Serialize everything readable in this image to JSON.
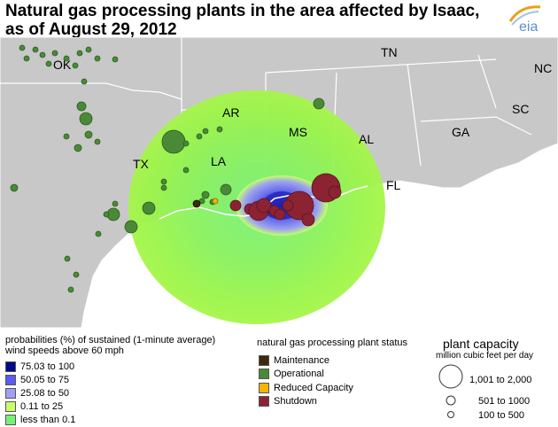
{
  "title": {
    "line1": "Natural gas processing plants in the area affected by Isaac,",
    "line2": "as of August 29, 2012"
  },
  "logo": {
    "text": "eia",
    "color": "#5b8fc9",
    "accent": "#e8a21a"
  },
  "map": {
    "land_color": "#c8c8c8",
    "water_color": "#ffffff",
    "border_color": "#ffffff",
    "state_labels": [
      "OK",
      "TN",
      "NC",
      "AR",
      "SC",
      "MS",
      "AL",
      "GA",
      "TX",
      "LA",
      "FL"
    ]
  },
  "wind_legend": {
    "title_line1": "probabilities (%) of sustained (1-minute average)",
    "title_line2": "wind speeds above 60 mph",
    "items": [
      {
        "label": "75.03 to  100",
        "color": "#000a8c"
      },
      {
        "label": "50.05 to    75",
        "color": "#5b5bf0"
      },
      {
        "label": "25.08 to    50",
        "color": "#9f9ff5"
      },
      {
        "label": "0.11 to    25",
        "color": "#c8ff6c"
      },
      {
        "label": "less than 0.1",
        "color": "#78f078"
      }
    ]
  },
  "status_legend": {
    "title": "natural gas processing plant status",
    "items": [
      {
        "label": "Maintenance",
        "color": "#3d2a0a"
      },
      {
        "label": "Operational",
        "color": "#4a8a36"
      },
      {
        "label": "Reduced Capacity",
        "color": "#f5b400"
      },
      {
        "label": "Shutdown",
        "color": "#8b2332"
      }
    ]
  },
  "capacity_legend": {
    "title": "plant capacity",
    "subtitle": "million cubic feet per day",
    "items": [
      {
        "label": "1,001 to  2,000"
      },
      {
        "label": "501 to  1000"
      },
      {
        "label": "100 to     500"
      }
    ]
  }
}
